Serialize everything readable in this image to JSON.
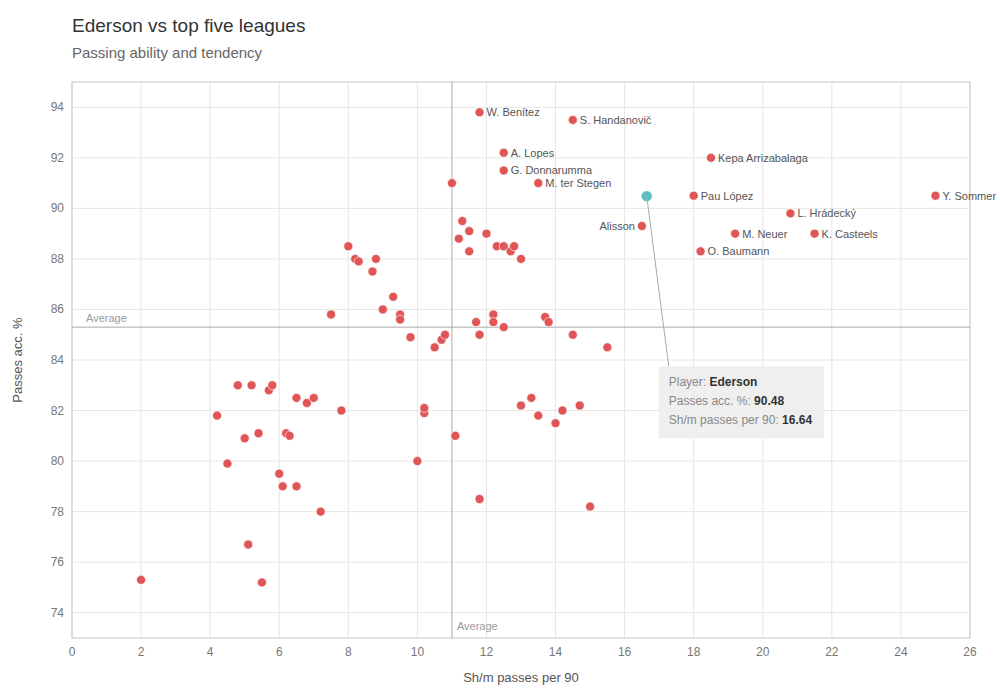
{
  "chart_data": {
    "type": "scatter",
    "title": "Ederson vs top five leagues",
    "subtitle": "Passing ability and tendency",
    "x_label": "Sh/m passes per 90",
    "y_label": "Passes acc. %",
    "xlim": [
      0,
      26
    ],
    "ylim": [
      73,
      95
    ],
    "xticks": [
      0,
      2,
      4,
      6,
      8,
      10,
      12,
      14,
      16,
      18,
      20,
      22,
      24,
      26
    ],
    "yticks": [
      74,
      76,
      78,
      80,
      82,
      84,
      86,
      88,
      90,
      92,
      94
    ],
    "grid": true,
    "series": [
      {
        "color": "#e05555",
        "x": [
          2.0,
          4.2,
          4.5,
          4.8,
          5.0,
          5.1,
          5.2,
          5.4,
          5.5,
          5.7,
          5.8,
          6.0,
          6.1,
          6.2,
          6.3,
          6.5,
          6.5,
          6.8,
          7.0,
          7.2,
          7.5,
          7.8,
          8.0,
          8.2,
          8.3,
          8.7,
          8.8,
          9.0,
          9.3,
          9.5,
          9.5,
          9.8,
          10.0,
          10.2,
          10.2,
          10.5,
          10.7,
          10.8,
          11.0,
          11.1,
          11.2,
          11.3,
          11.5,
          11.5,
          11.7,
          11.8,
          12.0,
          12.2,
          12.2,
          12.3,
          12.5,
          12.5,
          12.7,
          12.8,
          13.0,
          13.0,
          13.3,
          13.5,
          13.7,
          13.8,
          14.0,
          14.2,
          14.5,
          14.7,
          15.0,
          15.5,
          11.8
        ],
        "values": [
          75.3,
          81.8,
          79.9,
          83.0,
          80.9,
          76.7,
          83.0,
          81.1,
          75.2,
          82.8,
          83.0,
          79.5,
          79.0,
          81.1,
          81.0,
          79.0,
          82.5,
          82.3,
          82.5,
          78.0,
          85.8,
          82.0,
          88.5,
          88.0,
          87.9,
          87.5,
          88.0,
          86.0,
          86.5,
          85.8,
          85.6,
          84.9,
          80.0,
          81.9,
          82.1,
          84.5,
          84.8,
          85.0,
          91.0,
          81.0,
          88.8,
          89.5,
          89.1,
          88.3,
          85.5,
          85.0,
          89.0,
          85.8,
          85.5,
          88.5,
          85.3,
          88.5,
          88.3,
          88.5,
          88.0,
          82.2,
          82.5,
          81.8,
          85.7,
          85.5,
          81.5,
          82.0,
          85.0,
          82.2,
          78.2,
          84.5,
          78.5
        ]
      },
      {
        "color": "#e05555",
        "x": [
          11.8,
          12.5,
          14.5,
          12.5,
          13.5,
          18.5,
          18.0,
          16.5,
          19.2,
          18.2,
          20.8,
          21.5,
          25.0
        ],
        "values": [
          93.8,
          92.2,
          93.5,
          91.5,
          91.0,
          92.0,
          90.5,
          89.3,
          89.0,
          88.3,
          89.8,
          89.0,
          90.5
        ],
        "labels": [
          "W. Benítez",
          "A. Lopes",
          "S. Handanovič",
          "G. Donnarumma",
          "M. ter Stegen",
          "Kepa Arrizabalaga",
          "Pau López",
          "Alisson",
          "M. Neuer",
          "O. Baumann",
          "L. Hrádecký",
          "K. Casteels",
          "Y. Sommer"
        ]
      },
      {
        "color": "#5bbfbf",
        "x": [
          16.64
        ],
        "values": [
          90.48
        ]
      }
    ],
    "reference_lines": [
      {
        "axis": "y",
        "value": 85.3,
        "label": "Average"
      },
      {
        "axis": "x",
        "value": 11.0,
        "label": "Average"
      }
    ],
    "info_box": {
      "rows": [
        {
          "label": "Player: ",
          "value": "Ederson"
        },
        {
          "label": "Passes acc. %: ",
          "value": "90.48"
        },
        {
          "label": "Sh/m passes per 90: ",
          "value": "16.64"
        }
      ]
    }
  }
}
